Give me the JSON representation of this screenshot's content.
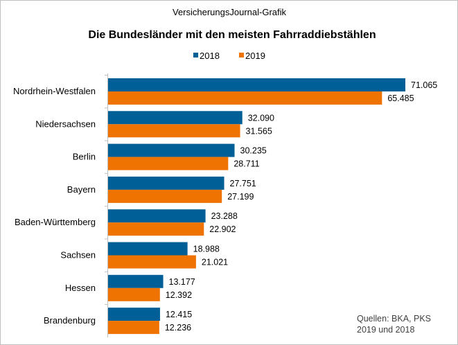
{
  "chart_data": {
    "type": "bar",
    "orientation": "horizontal",
    "supertitle": "VersicherungsJournal-Grafik",
    "title": "Die Bundesländer  mit den meisten Fahrraddiebstählen",
    "categories": [
      "Nordrhein-Westfalen",
      "Niedersachsen",
      "Berlin",
      "Bayern",
      "Baden-Württemberg",
      "Sachsen",
      "Hessen",
      "Brandenburg"
    ],
    "series": [
      {
        "name": "2018",
        "color": "#005f96",
        "values": [
          71065,
          32090,
          30235,
          27751,
          23288,
          18988,
          13177,
          12415
        ],
        "labels": [
          "71.065",
          "32.090",
          "30.235",
          "27.751",
          "23.288",
          "18.988",
          "13.177",
          "12.415"
        ]
      },
      {
        "name": "2019",
        "color": "#ef7300",
        "values": [
          65485,
          31565,
          28711,
          27199,
          22902,
          21021,
          12392,
          12236
        ],
        "labels": [
          "65.485",
          "31.565",
          "28.711",
          "27.199",
          "22.902",
          "21.021",
          "12.392",
          "12.236"
        ]
      }
    ],
    "xlim": [
      0,
      71065
    ],
    "grid": false,
    "legend": "top",
    "source": [
      "Quellen: BKA, PKS",
      "2019 und 2018"
    ]
  }
}
